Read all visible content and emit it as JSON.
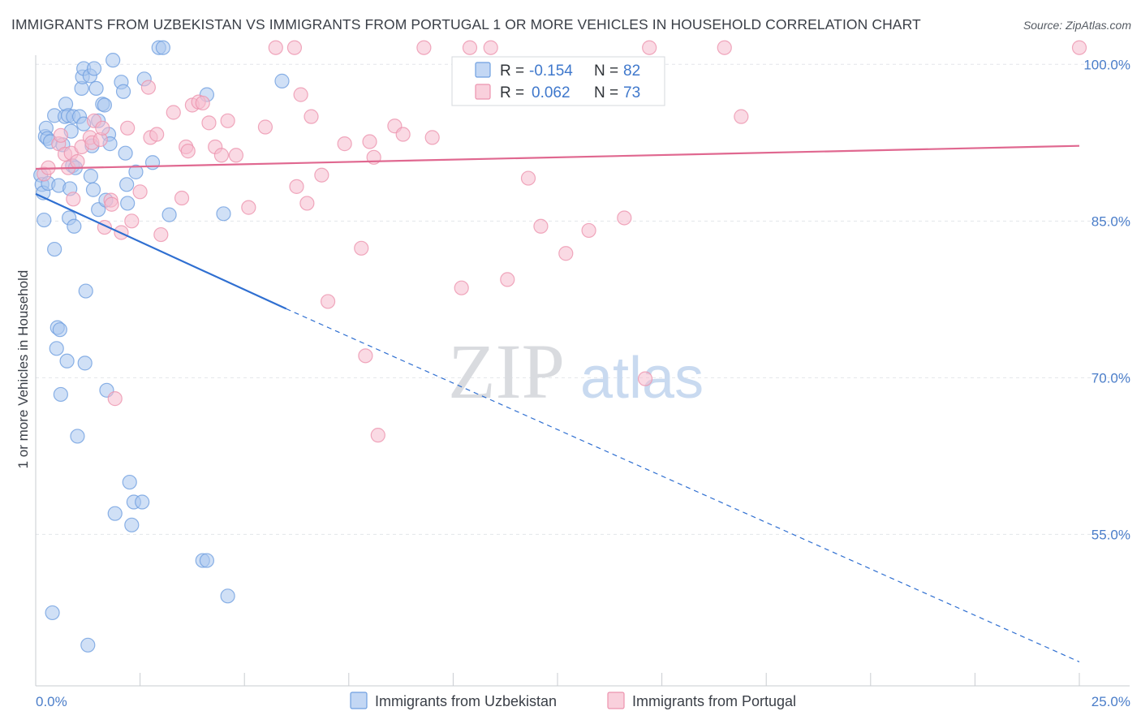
{
  "title": "IMMIGRANTS FROM UZBEKISTAN VS IMMIGRANTS FROM PORTUGAL 1 OR MORE VEHICLES IN HOUSEHOLD CORRELATION CHART",
  "source": "Source: ZipAtlas.com",
  "watermark": {
    "zip": "ZIP",
    "atlas": "atlas"
  },
  "legend_top": {
    "rows": [
      {
        "r_label": "R =",
        "r_value": "-0.154",
        "n_label": "N =",
        "n_value": "82"
      },
      {
        "r_label": "R =",
        "r_value": "0.062",
        "n_label": "N =",
        "n_value": "73"
      }
    ]
  },
  "legend_bottom": {
    "items": [
      {
        "label": "Immigrants from Uzbekistan"
      },
      {
        "label": "Immigrants from Portugal"
      }
    ]
  },
  "colors": {
    "uzbekistan_fill": "#a9c6ef",
    "uzbekistan_stroke": "#6f9fe0",
    "uzbekistan_line": "#2f6fd1",
    "portugal_fill": "#f6bccd",
    "portugal_stroke": "#ec93ae",
    "portugal_line": "#e06890",
    "tick_label": "#4a7dc9",
    "grid": "#e3e6ea"
  },
  "chart_data": {
    "type": "scatter",
    "title": "IMMIGRANTS FROM UZBEKISTAN VS IMMIGRANTS FROM PORTUGAL 1 OR MORE VEHICLES IN HOUSEHOLD CORRELATION CHART",
    "xlabel": "",
    "ylabel": "1 or more Vehicles in Household",
    "xlim": [
      0,
      25
    ],
    "ylim": [
      40.5,
      101.5
    ],
    "x_tick_labels": [
      "0.0%",
      "25.0%"
    ],
    "y_ticks": [
      55,
      70,
      85,
      100
    ],
    "y_tick_labels": [
      "55.0%",
      "70.0%",
      "85.0%",
      "100.0%"
    ],
    "grid": true,
    "legend_position": "top-center",
    "series": [
      {
        "name": "Immigrants from Uzbekistan",
        "r": -0.154,
        "n": 82,
        "trend": {
          "x0": 0.0,
          "y0": 87.6,
          "x1": 6.0,
          "y1": 76.6,
          "x_dash_end": 25.0,
          "y_dash_end": 42.8
        },
        "points": [
          [
            0.12,
            89.4
          ],
          [
            0.15,
            88.5
          ],
          [
            0.18,
            87.7
          ],
          [
            0.2,
            85.1
          ],
          [
            0.23,
            93.1
          ],
          [
            0.25,
            93.9
          ],
          [
            0.28,
            92.9
          ],
          [
            0.3,
            88.6
          ],
          [
            0.35,
            92.6
          ],
          [
            0.4,
            47.5
          ],
          [
            0.45,
            82.3
          ],
          [
            0.45,
            95.1
          ],
          [
            0.5,
            72.8
          ],
          [
            0.52,
            74.8
          ],
          [
            0.55,
            88.4
          ],
          [
            0.58,
            74.6
          ],
          [
            0.6,
            68.4
          ],
          [
            0.65,
            92.3
          ],
          [
            0.7,
            95.0
          ],
          [
            0.72,
            96.2
          ],
          [
            0.75,
            71.6
          ],
          [
            0.78,
            95.1
          ],
          [
            0.8,
            85.3
          ],
          [
            0.82,
            88.1
          ],
          [
            0.85,
            93.6
          ],
          [
            0.88,
            90.3
          ],
          [
            0.9,
            95.0
          ],
          [
            0.92,
            84.5
          ],
          [
            0.95,
            90.1
          ],
          [
            1.0,
            64.4
          ],
          [
            1.05,
            95.0
          ],
          [
            1.1,
            97.7
          ],
          [
            1.12,
            98.8
          ],
          [
            1.15,
            99.6
          ],
          [
            1.15,
            94.3
          ],
          [
            1.18,
            71.4
          ],
          [
            1.2,
            78.3
          ],
          [
            1.25,
            44.4
          ],
          [
            1.3,
            98.9
          ],
          [
            1.32,
            89.3
          ],
          [
            1.35,
            92.2
          ],
          [
            1.38,
            88.0
          ],
          [
            1.4,
            99.6
          ],
          [
            1.45,
            97.7
          ],
          [
            1.5,
            94.6
          ],
          [
            1.5,
            86.1
          ],
          [
            1.6,
            96.2
          ],
          [
            1.65,
            96.1
          ],
          [
            1.68,
            87.0
          ],
          [
            1.7,
            68.8
          ],
          [
            1.75,
            93.3
          ],
          [
            1.78,
            92.4
          ],
          [
            1.85,
            100.4
          ],
          [
            1.9,
            57.0
          ],
          [
            2.05,
            98.3
          ],
          [
            2.1,
            97.4
          ],
          [
            2.15,
            91.5
          ],
          [
            2.18,
            88.5
          ],
          [
            2.2,
            86.7
          ],
          [
            2.25,
            60.0
          ],
          [
            2.3,
            55.9
          ],
          [
            2.35,
            58.1
          ],
          [
            2.4,
            89.7
          ],
          [
            2.55,
            58.1
          ],
          [
            2.6,
            98.6
          ],
          [
            2.8,
            90.6
          ],
          [
            2.95,
            101.6
          ],
          [
            3.05,
            101.6
          ],
          [
            3.2,
            85.6
          ],
          [
            4.0,
            52.5
          ],
          [
            4.1,
            52.5
          ],
          [
            4.1,
            97.1
          ],
          [
            4.5,
            85.7
          ],
          [
            4.6,
            49.1
          ],
          [
            5.9,
            98.4
          ]
        ]
      },
      {
        "name": "Immigrants from Portugal",
        "r": 0.062,
        "n": 73,
        "trend": {
          "x0": 0.0,
          "y0": 90.0,
          "x1": 25.0,
          "y1": 92.2
        },
        "points": [
          [
            0.2,
            89.5
          ],
          [
            0.3,
            90.1
          ],
          [
            0.55,
            92.4
          ],
          [
            0.6,
            93.2
          ],
          [
            0.7,
            91.4
          ],
          [
            0.78,
            90.1
          ],
          [
            0.85,
            91.5
          ],
          [
            0.9,
            87.1
          ],
          [
            1.0,
            90.7
          ],
          [
            1.1,
            92.1
          ],
          [
            1.3,
            93.0
          ],
          [
            1.35,
            92.5
          ],
          [
            1.4,
            94.6
          ],
          [
            1.55,
            92.8
          ],
          [
            1.6,
            93.9
          ],
          [
            1.65,
            84.4
          ],
          [
            1.8,
            87.0
          ],
          [
            1.82,
            86.6
          ],
          [
            1.9,
            68.0
          ],
          [
            2.05,
            83.9
          ],
          [
            2.2,
            93.9
          ],
          [
            2.3,
            85.0
          ],
          [
            2.5,
            87.8
          ],
          [
            2.7,
            97.8
          ],
          [
            2.75,
            93.0
          ],
          [
            2.9,
            93.3
          ],
          [
            3.0,
            83.7
          ],
          [
            3.3,
            95.4
          ],
          [
            3.5,
            87.2
          ],
          [
            3.6,
            92.1
          ],
          [
            3.65,
            91.7
          ],
          [
            3.75,
            96.1
          ],
          [
            3.9,
            96.4
          ],
          [
            4.0,
            96.3
          ],
          [
            4.15,
            94.4
          ],
          [
            4.3,
            92.1
          ],
          [
            4.45,
            91.3
          ],
          [
            4.6,
            94.6
          ],
          [
            4.8,
            91.3
          ],
          [
            5.1,
            86.3
          ],
          [
            5.5,
            94.0
          ],
          [
            5.75,
            101.6
          ],
          [
            6.2,
            101.6
          ],
          [
            6.25,
            88.3
          ],
          [
            6.35,
            97.1
          ],
          [
            6.5,
            86.7
          ],
          [
            6.6,
            95.0
          ],
          [
            6.85,
            89.4
          ],
          [
            7.0,
            77.3
          ],
          [
            7.4,
            92.4
          ],
          [
            7.8,
            82.4
          ],
          [
            7.9,
            72.1
          ],
          [
            8.0,
            92.6
          ],
          [
            8.1,
            91.1
          ],
          [
            8.2,
            64.5
          ],
          [
            8.6,
            94.1
          ],
          [
            8.8,
            93.3
          ],
          [
            9.3,
            101.6
          ],
          [
            9.5,
            93.0
          ],
          [
            10.2,
            78.6
          ],
          [
            10.4,
            101.6
          ],
          [
            10.9,
            101.6
          ],
          [
            11.3,
            79.4
          ],
          [
            11.8,
            89.1
          ],
          [
            12.1,
            84.5
          ],
          [
            12.7,
            81.9
          ],
          [
            13.0,
            99.1
          ],
          [
            13.25,
            84.1
          ],
          [
            14.1,
            85.3
          ],
          [
            14.6,
            69.9
          ],
          [
            14.7,
            101.6
          ],
          [
            16.5,
            101.6
          ],
          [
            16.9,
            95.0
          ],
          [
            25.0,
            101.6
          ]
        ]
      }
    ]
  }
}
